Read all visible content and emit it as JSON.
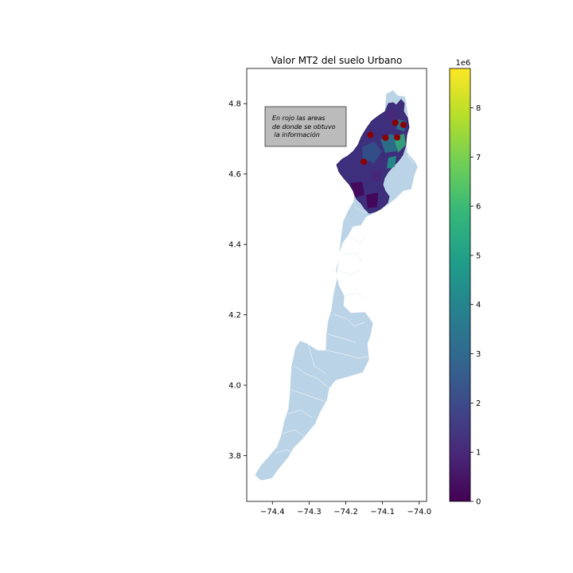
{
  "title": "Valor MT2 del suelo Urbano",
  "note": {
    "lines": [
      "En rojo las areas",
      "de donde se obtuvo",
      " la información"
    ],
    "background": "#bbbbbb"
  },
  "map": {
    "xlim": [
      -74.47,
      -73.98
    ],
    "ylim": [
      3.67,
      4.9
    ],
    "x_ticks": [
      -74.4,
      -74.3,
      -74.2,
      -74.1,
      -74.0
    ],
    "x_tick_labels": [
      "−74.4",
      "−74.3",
      "−74.2",
      "−74.1",
      "−74.0"
    ],
    "y_ticks": [
      3.8,
      4.0,
      4.2,
      4.4,
      4.6,
      4.8
    ],
    "y_tick_labels": [
      "3.8",
      "4.0",
      "4.2",
      "4.4",
      "4.6",
      "4.8"
    ],
    "base_fill": "#bad3e6",
    "urban_fill": "#3e2f7d",
    "sample_color": "#8b0000",
    "sample_points": [
      {
        "lon": -74.133,
        "lat": 4.711
      },
      {
        "lon": -74.092,
        "lat": 4.703
      },
      {
        "lon": -74.065,
        "lat": 4.746
      },
      {
        "lon": -74.043,
        "lat": 4.74
      },
      {
        "lon": -74.06,
        "lat": 4.704
      },
      {
        "lon": -74.151,
        "lat": 4.635
      }
    ]
  },
  "colorbar": {
    "min": 0,
    "max": 8800000,
    "ticks": [
      0,
      1,
      2,
      3,
      4,
      5,
      6,
      7,
      8
    ],
    "tick_labels": [
      "0",
      "1",
      "2",
      "3",
      "4",
      "5",
      "6",
      "7",
      "8"
    ],
    "multiplier": "1e6",
    "colormap": "viridis",
    "stops": [
      "#440154",
      "#482878",
      "#3e4989",
      "#31688e",
      "#26828e",
      "#1f9e89",
      "#35b779",
      "#6ece58",
      "#b5de2b",
      "#fde725"
    ]
  }
}
